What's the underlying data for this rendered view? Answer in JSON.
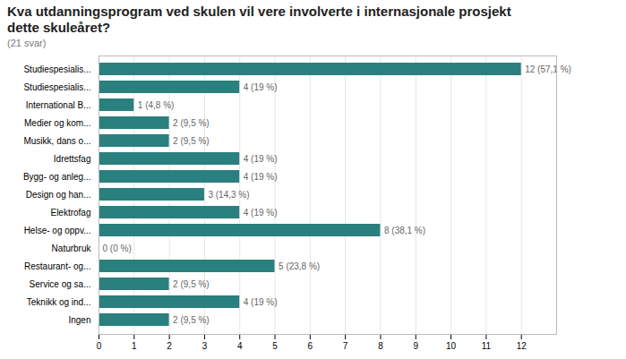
{
  "chart_data": {
    "type": "bar",
    "title": "Kva utdanningsprogram ved skulen vil vere involverte i internasjonale prosjekt\ndette skuleåret?",
    "subtitle": "(21 svar)",
    "orientation": "horizontal",
    "categories": [
      "Studiespesialis...",
      "Studiespesialis...",
      "International B...",
      "Medier og kom...",
      "Musikk, dans o...",
      "Idrettsfag",
      "Bygg- og anleg...",
      "Design og han...",
      "Elektrofag",
      "Helse- og oppv...",
      "Naturbruk",
      "Restaurant- og...",
      "Service og sa...",
      "Teknikk og ind...",
      "Ingen"
    ],
    "values": [
      12,
      4,
      1,
      2,
      2,
      4,
      4,
      3,
      4,
      8,
      0,
      5,
      2,
      4,
      2
    ],
    "value_labels": [
      "12 (57,1 %)",
      "4 (19 %)",
      "1 (4,8 %)",
      "2 (9,5 %)",
      "2 (9,5 %)",
      "4 (19 %)",
      "4 (19 %)",
      "3 (14,3 %)",
      "4 (19 %)",
      "8 (38,1 %)",
      "0 (0 %)",
      "5 (23,8 %)",
      "2 (9,5 %)",
      "4 (19 %)",
      "2 (9,5 %)"
    ],
    "data_labels": true,
    "color": "#2a7f7f",
    "xlim": [
      0,
      13
    ],
    "xticks": [
      0,
      1,
      2,
      3,
      4,
      5,
      6,
      7,
      8,
      9,
      10,
      11,
      12
    ],
    "grid": true
  }
}
